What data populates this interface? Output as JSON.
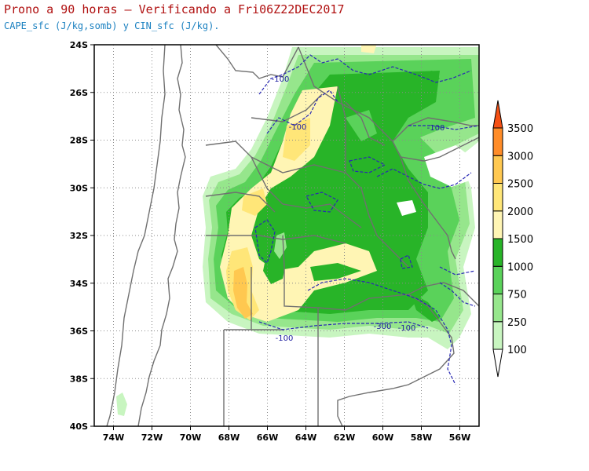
{
  "title": "Prono a 90 horas – Verificando a Fri06Z22DEC2017",
  "subtitle": "CAPE_sfc (J/kg,somb) y CIN_sfc (J/kg).",
  "map": {
    "lon_ticks": [
      "74W",
      "72W",
      "70W",
      "68W",
      "66W",
      "64W",
      "62W",
      "60W",
      "58W",
      "56W"
    ],
    "lat_ticks": [
      "24S",
      "26S",
      "28S",
      "30S",
      "32S",
      "34S",
      "36S",
      "38S",
      "40S"
    ],
    "lon_range": [
      -75,
      -55
    ],
    "lat_range": [
      -40,
      -24
    ],
    "cin_contour_labels": [
      "-100",
      "-100",
      "-100",
      "-100",
      "-300",
      "-100"
    ]
  },
  "colorbar": {
    "levels": [
      "100",
      "250",
      "750",
      "1000",
      "1500",
      "2000",
      "2500",
      "3000",
      "3500"
    ],
    "colors": [
      "#c8f5c0",
      "#96e68c",
      "#5ad25a",
      "#28b428",
      "#fff5b4",
      "#ffe678",
      "#ffc850",
      "#ff8c28",
      "#f55014",
      "#d21e0a",
      "#ffffff"
    ]
  },
  "colors": {
    "cape_100": "#c8f5c0",
    "cape_250": "#96e68c",
    "cape_750": "#5ad25a",
    "cape_1000": "#28b428",
    "cape_1500": "#fff5b4",
    "cape_2000": "#ffe678",
    "cape_2500": "#ffc850",
    "cin_contour": "#2828b4",
    "border": "#707070"
  }
}
